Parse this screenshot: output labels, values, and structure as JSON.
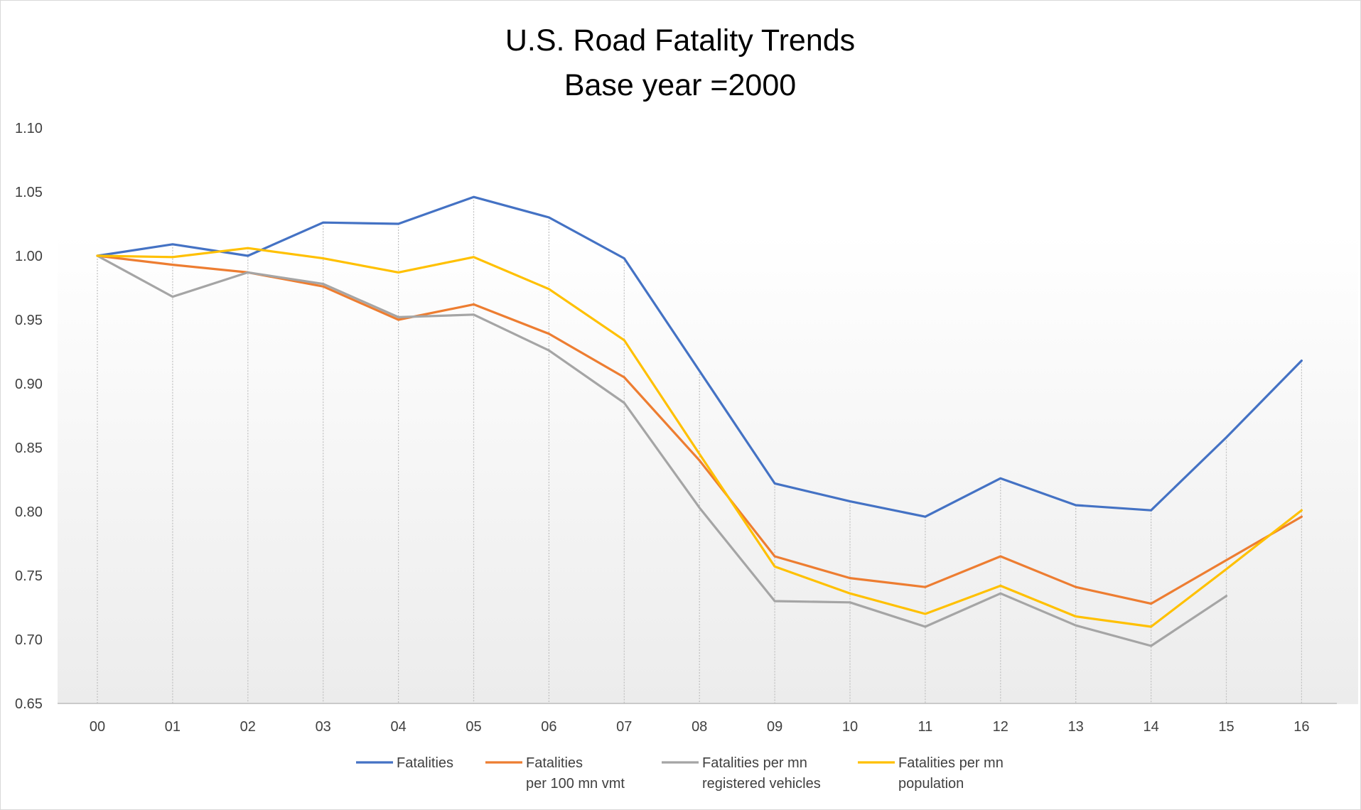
{
  "chart_data": {
    "type": "line",
    "title": [
      "U.S. Road Fatality Trends",
      "Base year =2000"
    ],
    "xlabel": "",
    "ylabel": "",
    "categories": [
      "00",
      "01",
      "02",
      "03",
      "04",
      "05",
      "06",
      "07",
      "08",
      "09",
      "10",
      "11",
      "12",
      "13",
      "14",
      "15",
      "16"
    ],
    "yticks": [
      "1.10",
      "1.05",
      "1.00",
      "0.95",
      "0.90",
      "0.85",
      "0.80",
      "0.75",
      "0.70",
      "0.65"
    ],
    "ylim": [
      0.65,
      1.1
    ],
    "grid": "vertical dotted lines at each year",
    "legend_position": "bottom",
    "series": [
      {
        "name": [
          "Fatalities"
        ],
        "color": "#4472C4",
        "values": [
          1.0,
          1.009,
          1.0,
          1.026,
          1.025,
          1.046,
          1.03,
          0.998,
          0.91,
          0.822,
          0.808,
          0.796,
          0.826,
          0.805,
          0.801,
          0.858,
          0.918
        ]
      },
      {
        "name": [
          "Fatalities",
          "per 100 mn vmt"
        ],
        "color": "#ED7D31",
        "values": [
          1.0,
          0.993,
          0.987,
          0.976,
          0.95,
          0.962,
          0.939,
          0.905,
          0.84,
          0.765,
          0.748,
          0.741,
          0.765,
          0.741,
          0.728,
          0.762,
          0.796
        ]
      },
      {
        "name": [
          "Fatalities per mn",
          "registered vehicles"
        ],
        "color": "#A5A5A5",
        "values": [
          1.0,
          0.968,
          0.987,
          0.978,
          0.952,
          0.954,
          0.926,
          0.885,
          0.803,
          0.73,
          0.729,
          0.71,
          0.736,
          0.711,
          0.695,
          0.734,
          null
        ]
      },
      {
        "name": [
          "Fatalities per mn",
          "population"
        ],
        "color": "#FFC000",
        "values": [
          1.0,
          0.999,
          1.006,
          0.998,
          0.987,
          0.999,
          0.974,
          0.934,
          0.845,
          0.757,
          0.736,
          0.72,
          0.742,
          0.718,
          0.71,
          0.755,
          0.801
        ]
      }
    ]
  }
}
